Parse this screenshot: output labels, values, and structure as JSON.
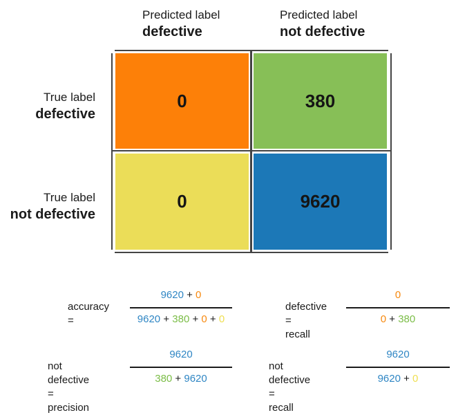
{
  "colors": {
    "tp": "#1c78b7",
    "fn": "#87bf57",
    "fp": "#fd8008",
    "tn_zero": "#ebdd58",
    "blue_text": "#2f86c4",
    "green_text": "#7bbd47",
    "orange_text": "#f7890f",
    "yellow_text": "#efdf50"
  },
  "columns": [
    {
      "caption": "Predicted label",
      "label": "defective"
    },
    {
      "caption": "Predicted label",
      "label": "not defective"
    }
  ],
  "rows": [
    {
      "caption": "True label",
      "label": "defective"
    },
    {
      "caption": "True label",
      "label": "not defective"
    }
  ],
  "cells": [
    {
      "value": "0",
      "color": "orange"
    },
    {
      "value": "380",
      "color": "green"
    },
    {
      "value": "0",
      "color": "yellow"
    },
    {
      "value": "9620",
      "color": "blue"
    }
  ],
  "formulas": {
    "accuracy": {
      "label_line1": "accuracy =",
      "numerator": [
        "9620",
        "+",
        "0"
      ],
      "denominator": [
        "9620",
        "+",
        "380",
        "+",
        "0",
        "+",
        "0"
      ]
    },
    "defective_recall": {
      "label_line1": "defective =",
      "label_line2": "recall",
      "numerator": [
        "0"
      ],
      "denominator": [
        "0",
        "+",
        "380"
      ]
    },
    "not_defective_precision": {
      "label_line1": "not defective =",
      "label_line2": "precision",
      "numerator": [
        "9620"
      ],
      "denominator": [
        "380",
        "+",
        "9620"
      ]
    },
    "not_defective_recall": {
      "label_line1": "not defective =",
      "label_line2": "recall",
      "numerator": [
        "9620"
      ],
      "denominator": [
        "9620",
        "+",
        "0"
      ]
    }
  }
}
